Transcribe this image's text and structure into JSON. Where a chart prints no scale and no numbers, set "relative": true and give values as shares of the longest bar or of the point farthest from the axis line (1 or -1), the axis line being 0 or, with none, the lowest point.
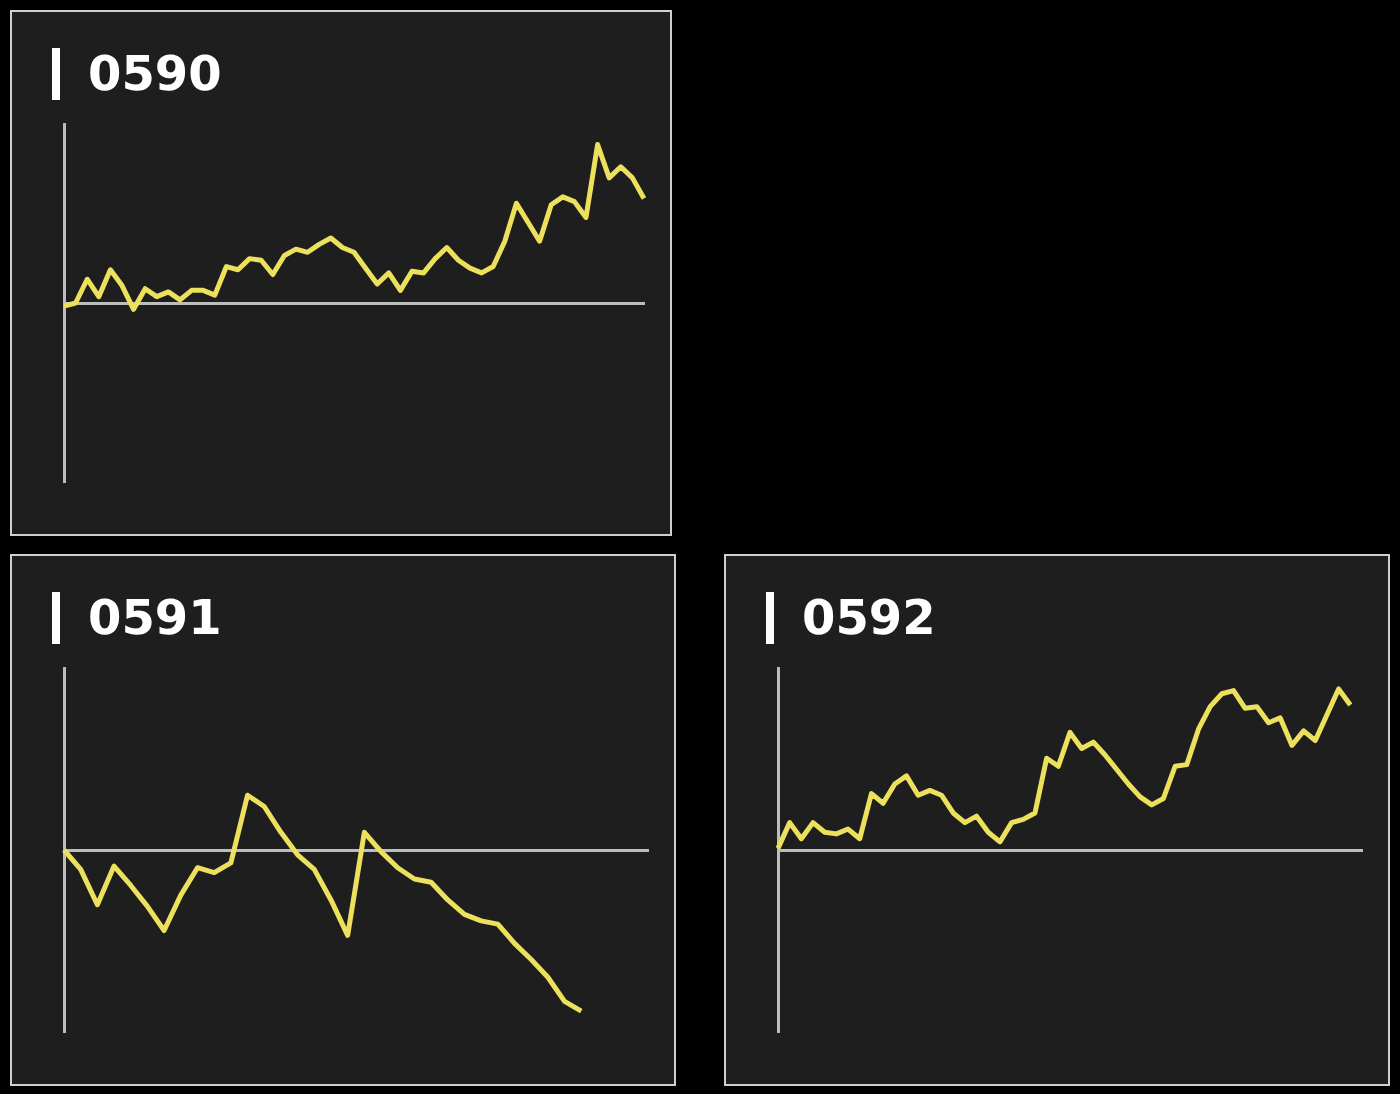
{
  "chart_data": [
    {
      "type": "line",
      "title": "0590",
      "relative": true,
      "categories": [
        null,
        null,
        null,
        null,
        null,
        null,
        null,
        null,
        null,
        null,
        null,
        null,
        null,
        null,
        null,
        null,
        null,
        null,
        null,
        null,
        null,
        null,
        null,
        null,
        null,
        null,
        null,
        null,
        null,
        null,
        null,
        null,
        null,
        null,
        null,
        null,
        null,
        null,
        null,
        null,
        null,
        null,
        null,
        null,
        null,
        null,
        null,
        null,
        null,
        null,
        null
      ],
      "series": [
        {
          "color": "#ece05c",
          "values": [
            -0.02,
            0.0,
            0.15,
            0.04,
            0.21,
            0.11,
            -0.04,
            0.09,
            0.04,
            0.07,
            0.02,
            0.08,
            0.08,
            0.05,
            0.23,
            0.21,
            0.28,
            0.27,
            0.18,
            0.3,
            0.34,
            0.32,
            0.37,
            0.41,
            0.35,
            0.32,
            0.22,
            0.12,
            0.19,
            0.08,
            0.2,
            0.19,
            0.28,
            0.35,
            0.27,
            0.22,
            0.19,
            0.23,
            0.39,
            0.63,
            0.51,
            0.39,
            0.62,
            0.67,
            0.64,
            0.54,
            1,
            0.79,
            0.86,
            0.79,
            0.66
          ]
        }
      ]
    },
    {
      "type": "line",
      "title": "0591",
      "relative": true,
      "categories": [
        null,
        null,
        null,
        null,
        null,
        null,
        null,
        null,
        null,
        null,
        null,
        null,
        null,
        null,
        null,
        null,
        null,
        null,
        null,
        null,
        null,
        null,
        null,
        null,
        null,
        null,
        null,
        null,
        null,
        null,
        null,
        null,
        null,
        null,
        null,
        null
      ],
      "series": [
        {
          "color": "#ece05c",
          "values": [
            0,
            -0.12,
            -0.34,
            -0.1,
            -0.22,
            -0.35,
            -0.5,
            -0.28,
            -0.11,
            -0.14,
            -0.08,
            0.34,
            0.27,
            0.11,
            -0.03,
            -0.12,
            -0.31,
            -0.53,
            0.11,
            -0.01,
            -0.11,
            -0.18,
            -0.2,
            -0.31,
            -0.4,
            -0.44,
            -0.46,
            -0.58,
            -0.68,
            -0.79,
            -0.94,
            -1,
            null,
            null,
            null,
            null
          ]
        }
      ]
    },
    {
      "type": "line",
      "title": "0592",
      "relative": true,
      "categories": [
        null,
        null,
        null,
        null,
        null,
        null,
        null,
        null,
        null,
        null,
        null,
        null,
        null,
        null,
        null,
        null,
        null,
        null,
        null,
        null,
        null,
        null,
        null,
        null,
        null,
        null,
        null,
        null,
        null,
        null,
        null,
        null,
        null,
        null,
        null,
        null,
        null,
        null,
        null,
        null,
        null,
        null,
        null,
        null,
        null,
        null,
        null,
        null,
        null,
        null,
        null
      ],
      "series": [
        {
          "color": "#ece05c",
          "values": [
            0.01,
            0.17,
            0.07,
            0.17,
            0.11,
            0.1,
            0.13,
            0.07,
            0.35,
            0.29,
            0.41,
            0.46,
            0.34,
            0.37,
            0.34,
            0.23,
            0.17,
            0.21,
            0.11,
            0.05,
            0.17,
            0.19,
            0.23,
            0.57,
            0.52,
            0.73,
            0.63,
            0.67,
            0.59,
            0.5,
            0.41,
            0.33,
            0.28,
            0.32,
            0.52,
            0.53,
            0.75,
            0.89,
            0.97,
            0.99,
            0.88,
            0.89,
            0.79,
            0.82,
            0.65,
            0.74,
            0.68,
            0.84,
            1,
            0.9,
            null
          ]
        }
      ]
    }
  ]
}
